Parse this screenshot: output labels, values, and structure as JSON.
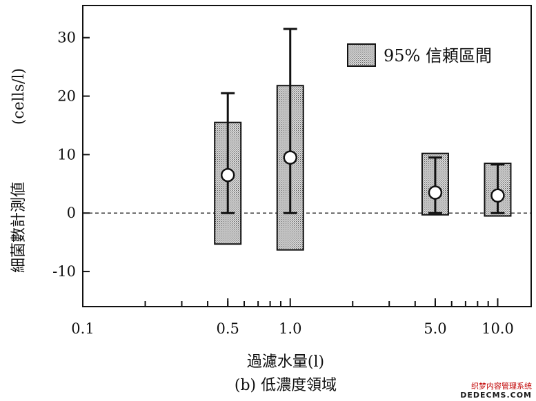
{
  "chart_data": {
    "type": "box-errorbar",
    "legend": {
      "label": "95% 信頼區間",
      "placement": "top-right"
    },
    "ylabel_main": "細菌數計測値",
    "ylabel_unit": "(cells/l)",
    "xlabel": "過濾水量(l)",
    "caption": "(b) 低濃度領域",
    "x_scale": "log",
    "xlim": [
      0.1,
      14.5
    ],
    "ylim": [
      -16,
      35.5
    ],
    "x_ticks": [
      {
        "value": 0.1,
        "label": "0.1"
      },
      {
        "value": 0.5,
        "label": "0.5"
      },
      {
        "value": 1.0,
        "label": "1.0"
      },
      {
        "value": 5.0,
        "label": "5.0"
      },
      {
        "value": 10.0,
        "label": "10.0"
      }
    ],
    "y_ticks": [
      {
        "value": 30,
        "label": "30"
      },
      {
        "value": 20,
        "label": "20"
      },
      {
        "value": 10,
        "label": "10"
      },
      {
        "value": 0,
        "label": "0"
      },
      {
        "value": -10,
        "label": "-10"
      }
    ],
    "reference_line": {
      "y": 0,
      "style": "dashed"
    },
    "points": [
      {
        "x": 0.5,
        "mean": 6.5,
        "ci_low": -5.3,
        "ci_high": 15.5,
        "err_low": 0,
        "err_high": 20.5
      },
      {
        "x": 1.0,
        "mean": 9.5,
        "ci_low": -6.3,
        "ci_high": 21.8,
        "err_low": 0,
        "err_high": 31.5
      },
      {
        "x": 5.0,
        "mean": 3.5,
        "ci_low": -0.3,
        "ci_high": 10.2,
        "err_low": 0,
        "err_high": 9.5
      },
      {
        "x": 10.0,
        "mean": 3.0,
        "ci_low": -0.5,
        "ci_high": 8.5,
        "err_low": 0,
        "err_high": 8.3
      }
    ]
  },
  "watermark": {
    "text": "织梦内容管理系统",
    "url": "DEDECMS.COM"
  }
}
